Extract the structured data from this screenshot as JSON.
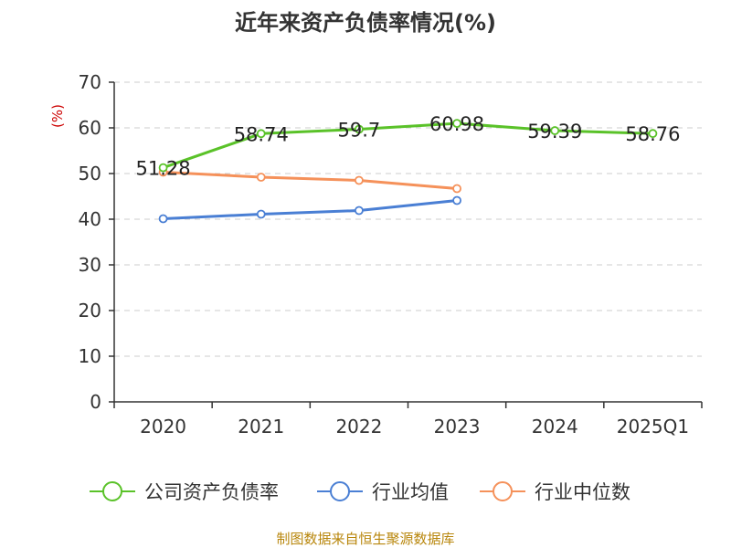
{
  "chart_data": {
    "type": "line",
    "title": "近年来资产负债率情况(%)",
    "unit_label": "(%)",
    "categories": [
      "2020",
      "2021",
      "2022",
      "2023",
      "2024",
      "2025Q1"
    ],
    "ylim": [
      0,
      70
    ],
    "yticks": [
      0,
      10,
      20,
      30,
      40,
      50,
      60,
      70
    ],
    "grid": true,
    "legend_position": "bottom",
    "series": [
      {
        "name": "公司资产负债率",
        "color": "#5ac229",
        "values": [
          51.28,
          58.74,
          59.7,
          60.98,
          59.39,
          58.76
        ],
        "labels": [
          "51.28",
          "58.74",
          "59.7",
          "60.98",
          "59.39",
          "58.76"
        ]
      },
      {
        "name": "行业均值",
        "color": "#4a7fd4",
        "values": [
          40.1,
          41.1,
          41.9,
          44.1,
          null,
          null
        ],
        "labels": null
      },
      {
        "name": "行业中位数",
        "color": "#f5915a",
        "values": [
          50.3,
          49.2,
          48.5,
          46.7,
          null,
          null
        ],
        "labels": null
      }
    ],
    "source": "制图数据来自恒生聚源数据库"
  }
}
